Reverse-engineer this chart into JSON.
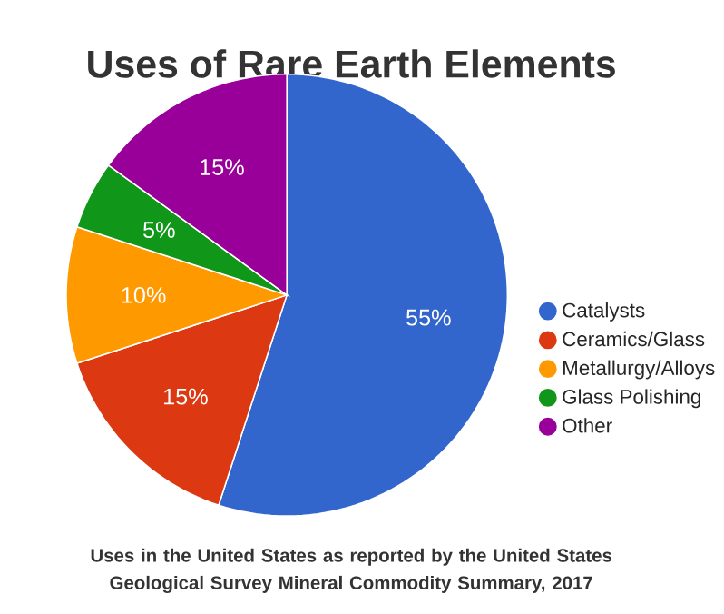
{
  "chart_data": {
    "type": "pie",
    "title": "Uses of Rare Earth Elements",
    "categories": [
      "Catalysts",
      "Ceramics/Glass",
      "Metallurgy/Alloys",
      "Glass Polishing",
      "Other"
    ],
    "values": [
      55,
      15,
      10,
      5,
      15
    ],
    "value_labels": [
      "55%",
      "15%",
      "10%",
      "5%",
      "15%"
    ],
    "colors": [
      "#3366cc",
      "#dc3912",
      "#ff9900",
      "#109618",
      "#990099"
    ],
    "legend": "right",
    "annotations": [
      "Uses in the United States as reported by the United States Geological Survey Mineral Commodity Summary, 2017"
    ]
  }
}
